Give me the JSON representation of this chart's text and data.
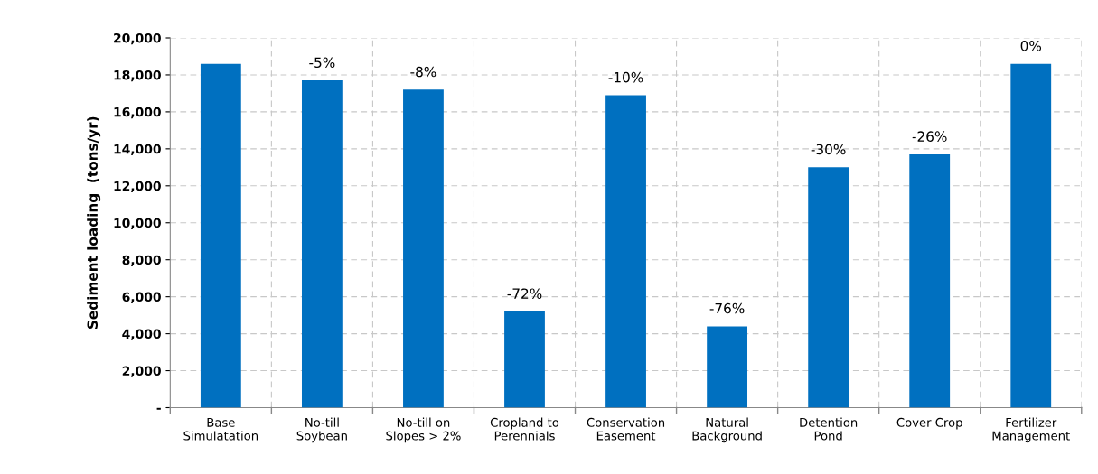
{
  "chart_data": {
    "type": "bar",
    "ylabel": "Sediment loading  (tons/yr)",
    "categories": [
      "Base\nSimulatation",
      "No-till\nSoybean",
      "No-till on\nSlopes > 2%",
      "Cropland to\nPerennials",
      "Conservation\nEasement",
      "Natural\nBackground",
      "Detention\nPond",
      "Cover Crop",
      "Fertilizer\nManagement"
    ],
    "values": [
      18600,
      17700,
      17200,
      5200,
      16900,
      4400,
      13000,
      13700,
      18600
    ],
    "annotations": [
      {
        "text": "-5%",
        "x": "No-till\nSoybean",
        "y": 17700
      },
      {
        "text": "-8%",
        "x": "No-till on\nSlopes > 2%",
        "y": 17200
      },
      {
        "text": "-72%",
        "x": "Cropland to\nPerennials",
        "y": 5200
      },
      {
        "text": "-10%",
        "x": "Conservation\nEasement",
        "y": 16900
      },
      {
        "text": "-76%",
        "x": "Natural\nBackground",
        "y": 4400
      },
      {
        "text": "-30%",
        "x": "Detention\nPond",
        "y": 13000
      },
      {
        "text": "-26%",
        "x": "Cover Crop",
        "y": 13700
      },
      {
        "text": "0%",
        "x": "Fertilizer\nManagement",
        "y": 18600
      }
    ],
    "color": "#0070c0",
    "ylim": [
      0,
      20000
    ],
    "yticks": [
      {
        "value": 0,
        "label": "-"
      },
      {
        "value": 2000,
        "label": "2,000"
      },
      {
        "value": 4000,
        "label": "4,000"
      },
      {
        "value": 6000,
        "label": "6,000"
      },
      {
        "value": 8000,
        "label": "8,000"
      },
      {
        "value": 10000,
        "label": "10,000"
      },
      {
        "value": 12000,
        "label": "12,000"
      },
      {
        "value": 14000,
        "label": "14,000"
      },
      {
        "value": 16000,
        "label": "16,000"
      },
      {
        "value": 18000,
        "label": "18,000"
      },
      {
        "value": 20000,
        "label": "20,000"
      }
    ],
    "grid": true
  }
}
